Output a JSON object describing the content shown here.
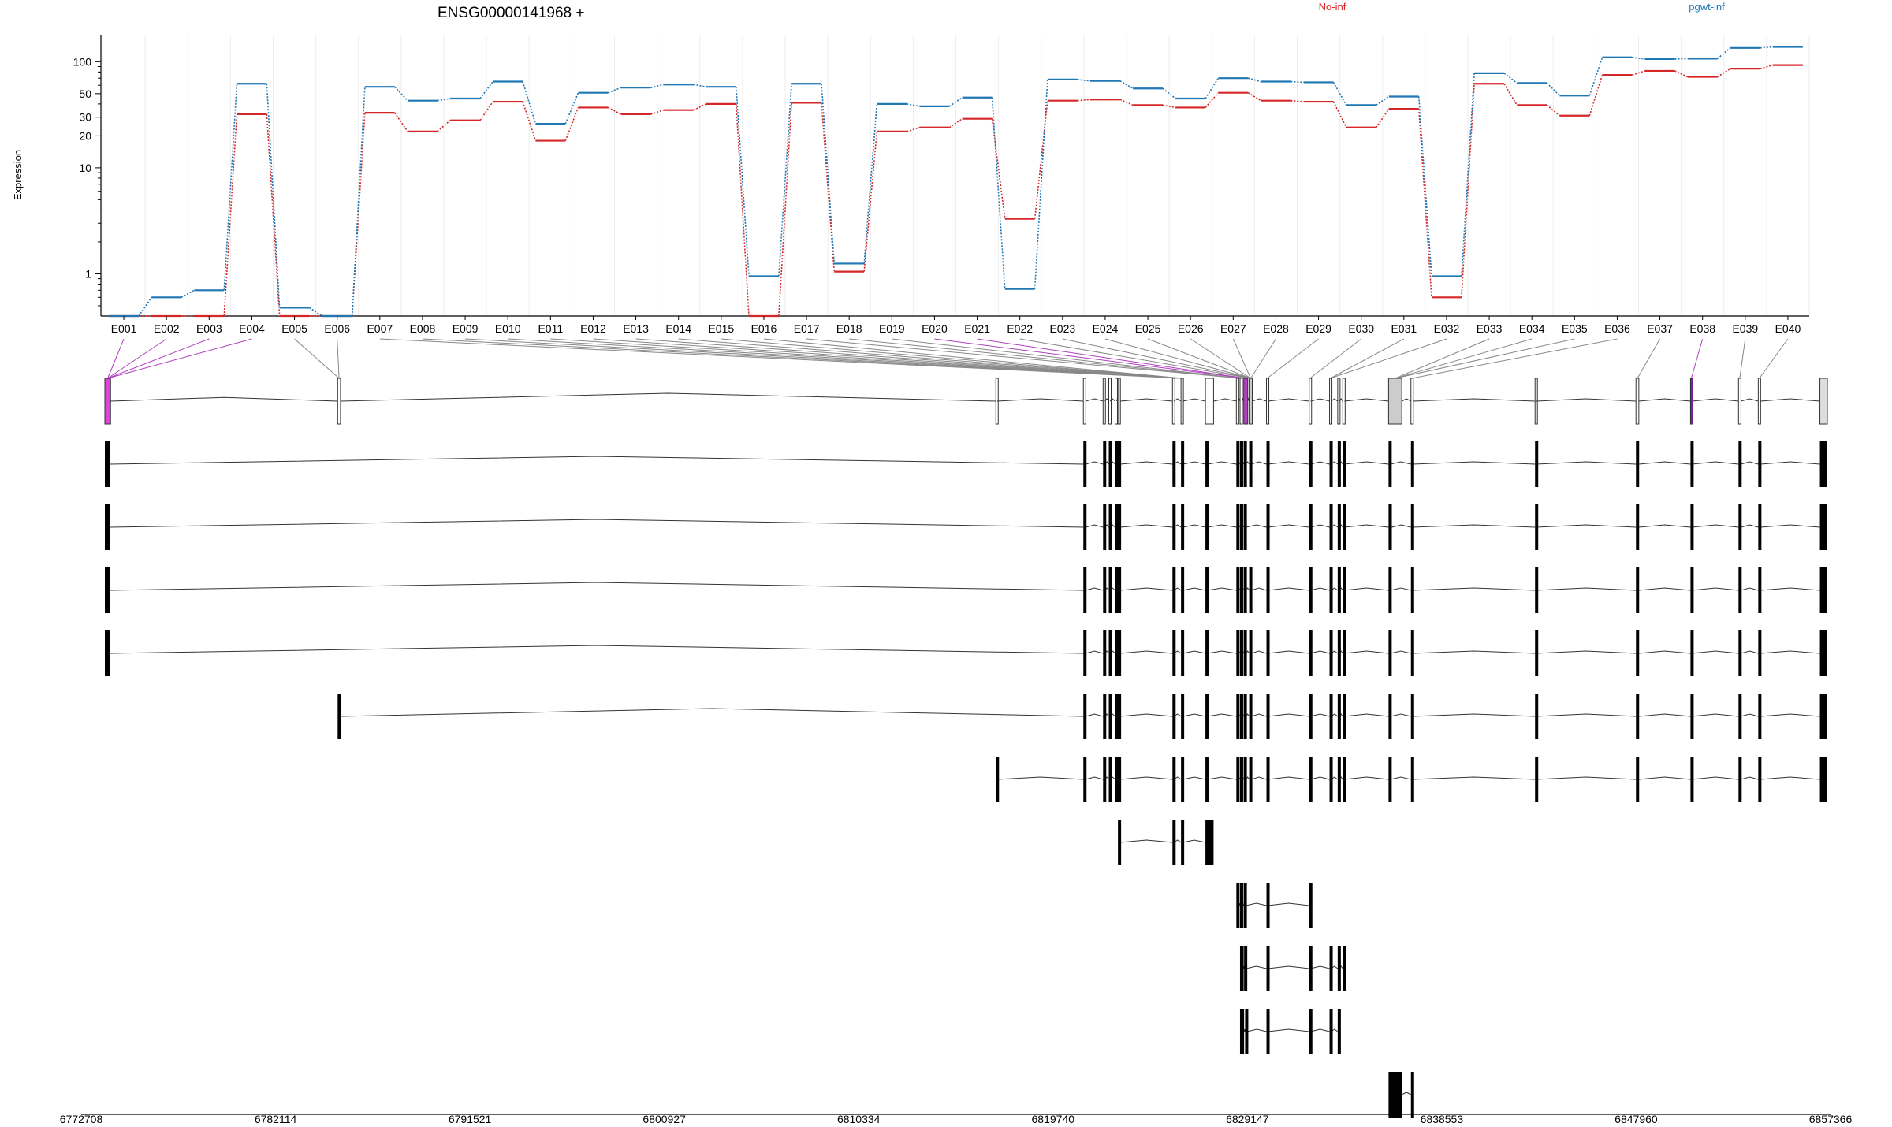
{
  "chart_data": {
    "type": "line",
    "title": "ENSG00000141968 +",
    "ylabel": "Expression",
    "yscale": "log",
    "ylim": [
      0.4,
      180
    ],
    "y_ticks": [
      1,
      10,
      20,
      30,
      50,
      100
    ],
    "y_tick_labels": [
      "1",
      "10",
      "20",
      "30",
      "50",
      "100"
    ],
    "grid": "vertical, light",
    "legend_placement": "top-right",
    "categories": [
      "E001",
      "E002",
      "E003",
      "E004",
      "E005",
      "E006",
      "E007",
      "E008",
      "E009",
      "E010",
      "E011",
      "E012",
      "E013",
      "E014",
      "E015",
      "E016",
      "E017",
      "E018",
      "E019",
      "E020",
      "E021",
      "E022",
      "E023",
      "E024",
      "E025",
      "E026",
      "E027",
      "E028",
      "E029",
      "E030",
      "E031",
      "E032",
      "E033",
      "E034",
      "E035",
      "E036",
      "E037",
      "E038",
      "E039",
      "E040"
    ],
    "series": [
      {
        "name": "No-inf",
        "color": "#d62728",
        "values": [
          0.4,
          0.4,
          0.4,
          32,
          0.4,
          0.4,
          33,
          22,
          28,
          42,
          18,
          37,
          32,
          35,
          40,
          0.4,
          41,
          1.05,
          22,
          24,
          29,
          3.3,
          43,
          44,
          39,
          37,
          51,
          43,
          42,
          24,
          36,
          0.6,
          62,
          39,
          31,
          75,
          82,
          72,
          86,
          93
        ]
      },
      {
        "name": "pgwt-inf",
        "color": "#1f77b4",
        "values": [
          0.4,
          0.6,
          0.7,
          62,
          0.48,
          0.4,
          58,
          43,
          45,
          65,
          26,
          51,
          57,
          61,
          58,
          0.95,
          62,
          1.25,
          40,
          38,
          46,
          0.72,
          68,
          66,
          56,
          45,
          70,
          65,
          64,
          39,
          47,
          0.95,
          78,
          63,
          48,
          110,
          106,
          107,
          135,
          138
        ]
      }
    ],
    "genomic_axis": {
      "start": 6772708,
      "end": 6857366,
      "tick_labels": [
        "6772708",
        "6782114",
        "6791521",
        "6800927",
        "6810334",
        "6819740",
        "6829147",
        "6838553",
        "6847960",
        "6857366"
      ]
    },
    "exons": [
      {
        "start": 6772708,
        "end": 6772990,
        "highlight": "magenta",
        "fill": "#e040e0"
      },
      {
        "start": 6784150,
        "end": 6784290,
        "highlight": "",
        "fill": "none"
      },
      {
        "start": 6816500,
        "end": 6816560,
        "highlight": "",
        "fill": "none"
      },
      {
        "start": 6820800,
        "end": 6820920,
        "highlight": "",
        "fill": "none"
      },
      {
        "start": 6821770,
        "end": 6821860,
        "highlight": "",
        "fill": "none"
      },
      {
        "start": 6822050,
        "end": 6822110,
        "highlight": "",
        "fill": "none"
      },
      {
        "start": 6822360,
        "end": 6822440,
        "highlight": "",
        "fill": "none"
      },
      {
        "start": 6822500,
        "end": 6822620,
        "highlight": "",
        "fill": "none"
      },
      {
        "start": 6825180,
        "end": 6825250,
        "highlight": "",
        "fill": "none"
      },
      {
        "start": 6825600,
        "end": 6825700,
        "highlight": "",
        "fill": "none"
      },
      {
        "start": 6826800,
        "end": 6827200,
        "highlight": "",
        "fill": "none"
      },
      {
        "start": 6828320,
        "end": 6828400,
        "highlight": "",
        "fill": "none"
      },
      {
        "start": 6828500,
        "end": 6828590,
        "highlight": "",
        "fill": "none"
      },
      {
        "start": 6828680,
        "end": 6828880,
        "highlight": "magenta",
        "fill": "#b040c0"
      },
      {
        "start": 6828950,
        "end": 6829100,
        "highlight": "",
        "fill": "#cccccc"
      },
      {
        "start": 6829800,
        "end": 6829870,
        "highlight": "",
        "fill": "none"
      },
      {
        "start": 6831900,
        "end": 6831970,
        "highlight": "",
        "fill": "none"
      },
      {
        "start": 6832900,
        "end": 6832980,
        "highlight": "",
        "fill": "none"
      },
      {
        "start": 6833300,
        "end": 6833380,
        "highlight": "",
        "fill": "none"
      },
      {
        "start": 6833550,
        "end": 6833630,
        "highlight": "",
        "fill": "none"
      },
      {
        "start": 6835800,
        "end": 6836450,
        "highlight": "",
        "fill": "#cccccc"
      },
      {
        "start": 6836900,
        "end": 6836990,
        "highlight": "",
        "fill": "none"
      },
      {
        "start": 6843000,
        "end": 6843060,
        "highlight": "",
        "fill": "none"
      },
      {
        "start": 6847960,
        "end": 6848100,
        "highlight": "",
        "fill": "none"
      },
      {
        "start": 6850640,
        "end": 6850720,
        "highlight": "purple",
        "fill": "#8020a0"
      },
      {
        "start": 6853000,
        "end": 6853120,
        "highlight": "",
        "fill": "none"
      },
      {
        "start": 6853970,
        "end": 6854080,
        "highlight": "",
        "fill": "none"
      },
      {
        "start": 6857000,
        "end": 6857366,
        "highlight": "",
        "fill": "#dddddd"
      }
    ],
    "exon_bin_links": [
      0,
      0,
      0,
      0,
      1,
      1,
      9,
      9,
      9,
      9,
      9,
      9,
      9,
      9,
      9,
      9,
      12,
      12,
      12,
      13,
      13,
      14,
      14,
      14,
      14,
      14,
      14,
      14,
      15,
      16,
      17,
      17,
      20,
      20,
      20,
      21,
      23,
      24,
      25,
      26,
      27
    ],
    "transcripts": [
      {
        "exons": [
          [
            6772708,
            6772950
          ],
          [
            6820800,
            6820920
          ],
          [
            6821770,
            6821860
          ],
          [
            6822050,
            6822110
          ],
          [
            6822360,
            6822440
          ],
          [
            6822500,
            6822620
          ],
          [
            6825180,
            6825250
          ],
          [
            6825600,
            6825700
          ],
          [
            6826800,
            6826900
          ],
          [
            6828320,
            6828400
          ],
          [
            6828500,
            6828590
          ],
          [
            6828680,
            6828800
          ],
          [
            6828950,
            6829050
          ],
          [
            6829800,
            6829870
          ],
          [
            6831900,
            6831970
          ],
          [
            6832900,
            6832980
          ],
          [
            6833300,
            6833380
          ],
          [
            6833550,
            6833630
          ],
          [
            6835800,
            6835900
          ],
          [
            6836900,
            6836990
          ],
          [
            6843000,
            6843060
          ],
          [
            6847960,
            6848100
          ],
          [
            6850640,
            6850720
          ],
          [
            6853000,
            6853120
          ],
          [
            6853970,
            6854080
          ],
          [
            6857000,
            6857366
          ]
        ]
      },
      {
        "exons": [
          [
            6772708,
            6772950
          ],
          [
            6820800,
            6820920
          ],
          [
            6821770,
            6821860
          ],
          [
            6822050,
            6822110
          ],
          [
            6822360,
            6822440
          ],
          [
            6822500,
            6822620
          ],
          [
            6825180,
            6825250
          ],
          [
            6825600,
            6825700
          ],
          [
            6826800,
            6826900
          ],
          [
            6828320,
            6828400
          ],
          [
            6828500,
            6828590
          ],
          [
            6828680,
            6828800
          ],
          [
            6829800,
            6829870
          ],
          [
            6831900,
            6831970
          ],
          [
            6832900,
            6832980
          ],
          [
            6833300,
            6833380
          ],
          [
            6833550,
            6833630
          ],
          [
            6835800,
            6835960
          ],
          [
            6836900,
            6836990
          ],
          [
            6843000,
            6843060
          ],
          [
            6847960,
            6848100
          ],
          [
            6850640,
            6850720
          ],
          [
            6853000,
            6853120
          ],
          [
            6853970,
            6854080
          ],
          [
            6857000,
            6857366
          ]
        ]
      },
      {
        "exons": [
          [
            6772708,
            6772950
          ],
          [
            6820800,
            6820920
          ],
          [
            6821770,
            6821860
          ],
          [
            6822050,
            6822110
          ],
          [
            6822360,
            6822440
          ],
          [
            6822500,
            6822620
          ],
          [
            6825180,
            6825250
          ],
          [
            6825600,
            6825700
          ],
          [
            6826800,
            6826900
          ],
          [
            6828320,
            6828400
          ],
          [
            6828500,
            6828590
          ],
          [
            6828680,
            6828800
          ],
          [
            6828950,
            6829050
          ],
          [
            6829800,
            6829870
          ],
          [
            6831900,
            6831970
          ],
          [
            6832900,
            6832980
          ],
          [
            6833300,
            6833380
          ],
          [
            6833550,
            6833630
          ],
          [
            6835800,
            6835900
          ],
          [
            6836900,
            6836990
          ],
          [
            6843000,
            6843060
          ],
          [
            6847960,
            6848100
          ],
          [
            6850640,
            6850720
          ],
          [
            6853000,
            6853120
          ],
          [
            6853970,
            6854080
          ],
          [
            6857000,
            6857366
          ]
        ]
      },
      {
        "exons": [
          [
            6772708,
            6772950
          ],
          [
            6820800,
            6820920
          ],
          [
            6821770,
            6821860
          ],
          [
            6822050,
            6822110
          ],
          [
            6822360,
            6822440
          ],
          [
            6822500,
            6822620
          ],
          [
            6825180,
            6825250
          ],
          [
            6825600,
            6825700
          ],
          [
            6826800,
            6826900
          ],
          [
            6828320,
            6828400
          ],
          [
            6828500,
            6828590
          ],
          [
            6828680,
            6828800
          ],
          [
            6828950,
            6829050
          ],
          [
            6829800,
            6829870
          ],
          [
            6831900,
            6831970
          ],
          [
            6832900,
            6832980
          ],
          [
            6833300,
            6833380
          ],
          [
            6833550,
            6833630
          ],
          [
            6835800,
            6835900
          ],
          [
            6836900,
            6836990
          ],
          [
            6843000,
            6843060
          ],
          [
            6847960,
            6848100
          ],
          [
            6850640,
            6850720
          ],
          [
            6853000,
            6853120
          ],
          [
            6853970,
            6854080
          ],
          [
            6857000,
            6857366
          ]
        ]
      },
      {
        "exons": [
          [
            6784150,
            6784290
          ],
          [
            6820800,
            6820920
          ],
          [
            6821770,
            6821860
          ],
          [
            6822050,
            6822110
          ],
          [
            6822360,
            6822440
          ],
          [
            6822500,
            6822620
          ],
          [
            6825180,
            6825250
          ],
          [
            6825600,
            6825700
          ],
          [
            6826800,
            6826900
          ],
          [
            6828320,
            6828400
          ],
          [
            6828500,
            6828590
          ],
          [
            6828680,
            6828800
          ],
          [
            6828950,
            6829050
          ],
          [
            6829800,
            6829870
          ],
          [
            6831900,
            6831970
          ],
          [
            6832900,
            6832980
          ],
          [
            6833300,
            6833380
          ],
          [
            6833550,
            6833630
          ],
          [
            6835800,
            6835900
          ],
          [
            6836900,
            6836990
          ],
          [
            6843000,
            6843060
          ],
          [
            6847960,
            6848100
          ],
          [
            6850640,
            6850720
          ],
          [
            6853000,
            6853120
          ],
          [
            6853970,
            6854080
          ],
          [
            6857000,
            6857366
          ]
        ]
      },
      {
        "exons": [
          [
            6816500,
            6816560
          ],
          [
            6820800,
            6820920
          ],
          [
            6821770,
            6821860
          ],
          [
            6822050,
            6822110
          ],
          [
            6822360,
            6822440
          ],
          [
            6822500,
            6822620
          ],
          [
            6825180,
            6825250
          ],
          [
            6825600,
            6825700
          ],
          [
            6826800,
            6826900
          ],
          [
            6828320,
            6828400
          ],
          [
            6828500,
            6828590
          ],
          [
            6828680,
            6828800
          ],
          [
            6828950,
            6829050
          ],
          [
            6829800,
            6829870
          ],
          [
            6831900,
            6831970
          ],
          [
            6832900,
            6832980
          ],
          [
            6833300,
            6833380
          ],
          [
            6833550,
            6833630
          ],
          [
            6835800,
            6835900
          ],
          [
            6836900,
            6836990
          ],
          [
            6843000,
            6843060
          ],
          [
            6847960,
            6848100
          ],
          [
            6850640,
            6850720
          ],
          [
            6853000,
            6853120
          ],
          [
            6853970,
            6854080
          ],
          [
            6857000,
            6857366
          ]
        ]
      },
      {
        "exons": [
          [
            6822500,
            6822620
          ],
          [
            6825180,
            6825250
          ],
          [
            6825600,
            6825700
          ],
          [
            6826800,
            6827200
          ]
        ]
      },
      {
        "exons": [
          [
            6828320,
            6828450
          ],
          [
            6828500,
            6828590
          ],
          [
            6828680,
            6828800
          ],
          [
            6829800,
            6829870
          ],
          [
            6831900,
            6831970
          ]
        ]
      },
      {
        "exons": [
          [
            6828500,
            6828680
          ],
          [
            6828700,
            6828800
          ],
          [
            6829800,
            6829870
          ],
          [
            6831900,
            6831970
          ],
          [
            6832900,
            6832980
          ],
          [
            6833300,
            6833380
          ],
          [
            6833550,
            6833630
          ]
        ]
      },
      {
        "exons": [
          [
            6828500,
            6828700
          ],
          [
            6828750,
            6828850
          ],
          [
            6829800,
            6829870
          ],
          [
            6831900,
            6831970
          ],
          [
            6832900,
            6832980
          ],
          [
            6833300,
            6833380
          ]
        ]
      },
      {
        "exons": [
          [
            6835800,
            6836450
          ],
          [
            6836900,
            6836990
          ]
        ]
      }
    ]
  }
}
